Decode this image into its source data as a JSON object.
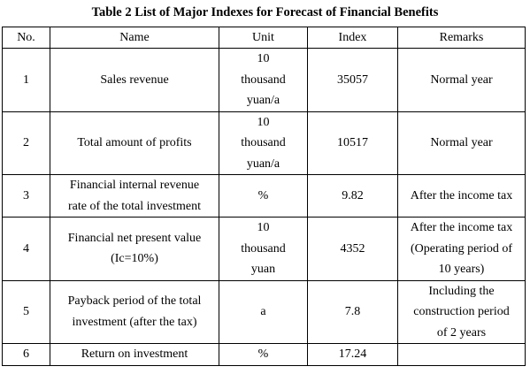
{
  "caption": "Table 2 List of Major Indexes for Forecast of Financial Benefits",
  "table": {
    "headers": [
      "No.",
      "Name",
      "Unit",
      "Index",
      "Remarks"
    ],
    "rows": [
      {
        "no": "1",
        "name": "Sales revenue",
        "unit": "10\nthousand\nyuan/a",
        "index": "35057",
        "remarks": "Normal year"
      },
      {
        "no": "2",
        "name": "Total amount of profits",
        "unit": "10\nthousand\nyuan/a",
        "index": "10517",
        "remarks": "Normal year"
      },
      {
        "no": "3",
        "name": "Financial internal revenue\nrate of the total investment",
        "unit": "%",
        "index": "9.82",
        "remarks": "After the income tax"
      },
      {
        "no": "4",
        "name": "Financial net present value\n(Ic=10%)",
        "unit": "10\nthousand\nyuan",
        "index": "4352",
        "remarks": "After the income tax\n(Operating period of\n10 years)"
      },
      {
        "no": "5",
        "name": "Payback period of the total\ninvestment (after the tax)",
        "unit": "a",
        "index": "7.8",
        "remarks": "Including the\nconstruction period\nof 2 years"
      },
      {
        "no": "6",
        "name": "Return on investment",
        "unit": "%",
        "index": "17.24",
        "remarks": ""
      }
    ]
  }
}
